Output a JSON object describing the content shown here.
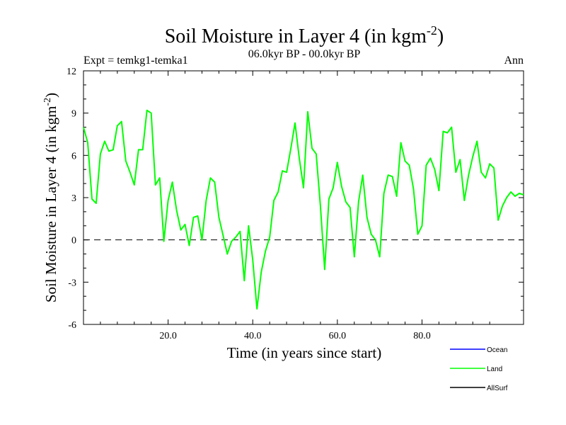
{
  "chart_data": {
    "type": "line",
    "title": "Soil Moisture in Layer 4 (in kgm",
    "title_sup": "-2",
    "title_close": ")",
    "subtitle": "06.0kyr BP - 00.0kyr BP",
    "expt_label": "Expt = temkg1-temka1",
    "season_label": "Ann",
    "ylabel": "Soil Moisture in Layer 4 (in kgm",
    "ylabel_sup": "-2",
    "ylabel_close": ")",
    "xlabel": "Time (in years since start)",
    "xlim": [
      0,
      104
    ],
    "ylim": [
      -6,
      12
    ],
    "x_ticks": [
      20,
      40,
      60,
      80
    ],
    "x_tick_labels": [
      "20.0",
      "40.0",
      "60.0",
      "80.0"
    ],
    "y_ticks": [
      -6,
      -3,
      0,
      3,
      6,
      9,
      12
    ],
    "y_tick_labels": [
      "-6",
      "-3",
      "0",
      "3",
      "6",
      "9",
      "12"
    ],
    "reference_line_y": 0,
    "legend": [
      {
        "name": "Ocean",
        "color": "#0000ff"
      },
      {
        "name": "Land",
        "color": "#00ff00"
      },
      {
        "name": "AllSurf",
        "color": "#000000"
      }
    ],
    "series": [
      {
        "name": "Land",
        "color": "#00ff00",
        "x": [
          0,
          1,
          2,
          3,
          4,
          5,
          6,
          7,
          8,
          9,
          10,
          11,
          12,
          13,
          14,
          15,
          16,
          17,
          18,
          19,
          20,
          21,
          22,
          23,
          24,
          25,
          26,
          27,
          28,
          29,
          30,
          31,
          32,
          33,
          34,
          35,
          36,
          37,
          38,
          39,
          40,
          41,
          42,
          43,
          44,
          45,
          46,
          47,
          48,
          49,
          50,
          51,
          52,
          53,
          54,
          55,
          56,
          57,
          58,
          59,
          60,
          61,
          62,
          63,
          64,
          65,
          66,
          67,
          68,
          69,
          70,
          71,
          72,
          73,
          74,
          75,
          76,
          77,
          78,
          79,
          80,
          81,
          82,
          83,
          84,
          85,
          86,
          87,
          88,
          89,
          90,
          91,
          92,
          93,
          94,
          95,
          96,
          97,
          98,
          99,
          100,
          101,
          102,
          103,
          104
        ],
        "values": [
          8.0,
          6.9,
          2.9,
          2.6,
          6.1,
          7.0,
          6.3,
          6.4,
          8.1,
          8.4,
          5.6,
          4.8,
          3.9,
          6.4,
          6.4,
          9.2,
          9.0,
          3.9,
          4.4,
          -0.1,
          2.8,
          4.1,
          2.1,
          0.7,
          1.1,
          -0.4,
          1.6,
          1.7,
          0.0,
          2.8,
          4.4,
          4.1,
          1.6,
          0.3,
          -1.0,
          -0.1,
          0.2,
          0.6,
          -2.9,
          1.0,
          -1.4,
          -4.9,
          -2.3,
          -0.8,
          0.2,
          2.8,
          3.4,
          4.9,
          4.8,
          6.5,
          8.3,
          5.8,
          3.7,
          9.1,
          6.5,
          6.1,
          2.4,
          -2.1,
          2.9,
          3.7,
          5.5,
          3.8,
          2.7,
          2.3,
          -1.2,
          2.7,
          4.6,
          1.6,
          0.4,
          0.0,
          -1.2,
          3.3,
          4.6,
          4.5,
          3.1,
          6.9,
          5.6,
          5.3,
          3.6,
          0.4,
          1.0,
          5.3,
          5.8,
          5.0,
          3.5,
          7.7,
          7.6,
          8.0,
          4.8,
          5.7,
          2.8,
          4.6,
          5.9,
          7.0,
          4.8,
          4.4,
          5.4,
          5.1,
          1.4,
          2.4,
          3.0,
          3.4,
          3.1,
          3.3,
          3.2
        ]
      }
    ]
  }
}
